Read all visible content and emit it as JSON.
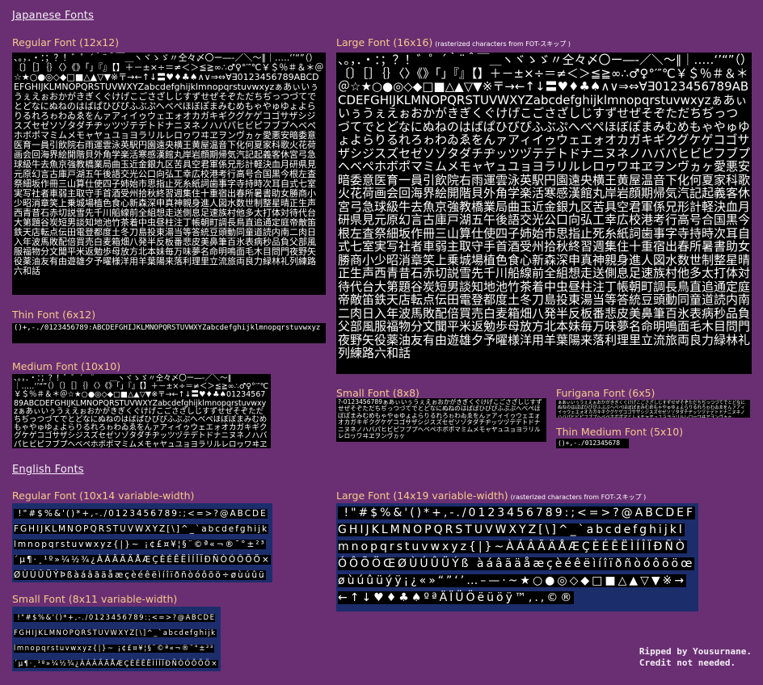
{
  "colors": {
    "background": "#6a2f72",
    "section_title": "#f4f0f6",
    "font_label": "#f6c98a",
    "sheet_bg": "#000000",
    "glyph": "#ffffff",
    "variable_width_band": "#1c2d6c"
  },
  "sections": {
    "japanese": "Japanese Fonts",
    "english": "English Fonts"
  },
  "japanese": {
    "regular": {
      "label": "Regular Font (12x12)",
      "glyphs": "、。，．・：；？！゛゜´｀¨＾￣＿ヽヾゝゞ〃仝々〆〇ー―‐／＼～∥｜…‥‘’“”（）〔〕［］｛｝〈〉《》「」『』【】＋－±×÷＝≠＜＞≦≧∞∴♂♀°′″℃￥＄％＃＆＊＠☆★○●◎◇◆□■△▲▽▼※〒→←↑↓〓♥♦♣♠∧∨⇒⇔∀∃0123456789ABCDEFGHIJKLMNOPQRSTUVWXYZabcdefghijklmnopqrstuvwxyzぁあぃいぅうぇえぉおかがきぎくぐけげこごさざしじすずせぜそぞただちぢっつづてでとどなにぬねのはばぱひびぴふぶぷへべぺほぼぽまみむめもゃやゅゆょよらりるれろゎわゐゑをんァアィイゥウェエォオカガキギクグケゲコゴサザシジスズセゼソゾタダチヂッツヅテデトドナニヌネノハバパヒビピフブプヘベペホボポマミムメモャヤュユョヨラリルレロヮワヰヱヲンヴヵヶ愛悪安暗委意医育一員引飲院右雨運雲泳英駅円園遠央横王黄屋温音下化何夏家科歌火花荷画会回海界絵開階貝外角学楽活寒感漢館丸岸岩顔期帰気汽記起義客休宮弓急球級牛去魚京強教橋業局曲玉近金銀九区苦具空君軍係兄形計軽決血月研県見元原幻言古庫戸湖五午後語交光公口向弘工幸広校港考行高号合国黒今根左査祭細坂作冊三山算仕使四子姉始市思指止死糸紙詞歯事字寺持時次耳自式七室実写社者車弱主取守手首酒受州拾秋終習週集住十重宿出春所暑書助女勝商小少昭消章笑上乗城場植色食心新森深申真神親身進人図水数世制整星晴正生声西青昔石赤切説雪先千川船線前全組想走送側息足速族村他多太打体対待代台大第題谷炭短男談知地池竹茶着中虫昼柱注丁帳朝町調長鳥直追通定庭帝敵笛鉄天店転点伝田電登都度土冬刀島投東湯当等答統豆頭動同童道読内南二肉日入年波馬敗配倍買売白麦箱畑八発半反板番悲皮美鼻筆百氷表病秒品負父部風服福物分文聞平米返勉歩母放方北本妹毎万味夢名命明鳴面毛木目問門夜野矢役薬油友有由遊雄夕予曜様洋用羊葉陽来落利理里立流旅両良力緑林礼列練路六和話"
    },
    "large": {
      "label": "Large Font (16x16)",
      "note": "(rasterized characters from FOT-スキップ )",
      "glyphs": "、。，．・：；？！゛゜´｀¨＾￣＿ヽヾゝゞ〃仝々〆〇ー―‐／＼～∥｜…‥‘’“”（）〔〕［］｛｝〈〉《》「」『』【】＋－±×÷＝≠＜＞≦≧∞∴♂♀°′″℃￥＄％＃＆＊＠☆★○●◎◇◆□■△▲▽▼※〒→←↑↓〓♥♦♣♠∧∨⇒⇔∀∃0123456789ABCDEFGHIJKLMNOPQRSTUVWXYZabcdefghijklmnopqrstuvwxyzぁあぃいぅうぇえぉおかがきぎくぐけげこごさざしじすずせぜそぞただちぢっつづてでとどなにぬねのはばぱひびぴふぶぷへべぺほぼぽまみむめもゃやゅゆょよらりるれろゎわゐゑをんァアィイゥウェエォオカガキギクグケゲコゴサザシジスズセゼソゾタダチヂッツヅテデトドナニヌネノハバパヒビピフブプヘベペホボポマミムメモャヤュユョヨラリルレロヮワヰヱヲンヴヵヶ愛悪安暗委意医育一員引飲院右雨運雲泳英駅円園遠央横王黄屋温音下化何夏家科歌火花荷画会回海界絵開階貝外角学楽活寒感漢館丸岸岩顔期帰気汽記起義客休宮弓急球級牛去魚京強教橋業局曲玉近金銀九区苦具空君軍係兄形計軽決血月研県見元原幻言古庫戸湖五午後語交光公口向弘工幸広校港考行高号合国黒今根左査祭細坂作冊三山算仕使四子姉始市思指止死糸紙詞歯事字寺持時次耳自式七室実写社者車弱主取守手首酒受州拾秋終習週集住十重宿出春所暑書助女勝商小少昭消章笑上乗城場植色食心新森深申真神親身進人図水数世制整星晴正生声西青昔石赤切説雪先千川船線前全組想走送側息足速族村他多太打体対待代台大第題谷炭短男談知地池竹茶着中虫昼柱注丁帳朝町調長鳥直追通定庭帝敵笛鉄天店転点伝田電登都度土冬刀島投東湯当等答統豆頭動同童道読内南二肉日入年波馬敗配倍買売白麦箱畑八発半反板番悲皮美鼻筆百氷表病秒品負父部風服福物分文聞平米返勉歩母放方北本妹毎万味夢名命明鳴面毛木目問門夜野矢役薬油友有由遊雄夕予曜様洋用羊葉陽来落利理里立流旅両良力緑林礼列練路六和話"
    },
    "thin": {
      "label": "Thin Font (6x12)",
      "glyphs": "()+,-./0123456789:ABCDEFGHIJKLMNOPQRSTUVWXYZabcdefghijklmnopqrstuvwxyz"
    },
    "medium": {
      "label": "Medium Font (10x10)",
      "glyphs": "、。，．・：；？！゛゜´｀¨＾￣＿ヽヾゝゞ〃仝々〆〇ー―‐／＼～∥｜…‥‘’“”（）〔〕［］｛｝〈〉《》「」『』【】＋－±×÷＝≠＜＞≦≧∞∴♂♀°′″℃￥＄％＃＆＊＠☆★○●◎◇◆□■△▲▽▼※〒→←↑↓〓♥♦♣♠0123456789ABCDEFGHIJKLMNOPQRSTUVWXYZabcdefghijklmnopqrstuvwxyzぁあぃいぅうぇえぉおかがきぎくぐけげこごさざしじすずせぜそぞただちぢっつづてでとどなにぬねのはばぱひびぴふぶぷへべぺほぼぽまみむめもゃやゅゆょよらりるれろゎわゐゑをんァアィイゥウェエォオカガキギクグケゲコゴサザシジスズセゼソゾタダチヂッツヅテデトドナニヌネノハバパヒビピフブプヘベペホボポマミムメモャヤュユョヨラリルレロヮワヰヱヲンヴヵヶ"
    },
    "small": {
      "label": "Small Font (8x8)",
      "glyphs": "?-0123456789ぁあぃいぅうぇえぉおかがきぎくぐけげこごさざしじすずせぜそぞただちぢっつづてでとどなにぬねのはばぱひびぴふぶぷへべぺほぼぽまみむめもゃやゅゆょよらりるれろゎわゐゑをんァアィイゥウェエォオカガキギクグケゲコゴサザシジスズセゼソゾタダチヂッツヅテデトドナニヌネノハバパヒビピフブプヘベペホボポマミムメモャヤュユョヨラリルレロヮワヰヱヲンヴヵヶ"
    },
    "furigana": {
      "label": "Furigana Font (6x5)",
      "glyphs": "ぁあぃいぅうぇえぉおかがきぎくぐけげこごさざしじすずせぜそぞただちぢっつづてでとどなにぬねのはばぱひびぴふぶぷへべぺほぼぽまみむめもゃやゅゆょよらりるれろゎわゐゑをんァアィイゥウェエォオカガキギクグケゲコゴサザシジスズセゼソゾタダチヂッツヅテデトドナニヌネノハバパヒビピフブプヘベペホボポマミムメモャヤュユョヨラリルレロヮワヰヱヲンヴヵヶ"
    },
    "thin_medium": {
      "label": "Thin Medium Font (5x10)",
      "glyphs": "()+,-./0123456789:"
    }
  },
  "english": {
    "regular": {
      "label": "Regular Font (10x14 variable-width)",
      "glyphs": " !\"#$%&'()*+,-./0123456789:;<=>?@ABCDEFGHIJKLMNOPQRSTUVWXYZ[\\]^_`abcdefghijklmnopqrstuvwxyz{|}~ ¡¢£¤¥¦§¨©ª«¬­®¯°±²³´µ¶·¸¹º»¼½¾¿ÀÁÂÃÄÅÆÇÈÉÊËÌÍÎÏÐÑÒÓÔÕÖ×ØÙÚÛÜÝÞßàáâãäåæçèéêëìíîïðñòóôõö÷øùúûüýþÿŒœ‘’“”…†‡•™©®♥♦♣♠○●◎◇◆□■△▲▽▼※→←↑↓"
    },
    "large": {
      "label": "Large Font (14x19 variable-width)",
      "note": "(rasterized characters from FOT-スキップ )",
      "glyphs": " !\"#$%&'()*+,-./0123456789:;<=>?@ABCDEFGHIJKLMNOPQRSTUVWXYZ[\\]^_`abcdefghijklmnopqrstuvwxyz{|}~ÀÁÂÃÄÅÆÇÈÉÊËÌÍÎÏÐÑÒÓÔÕÖŒØÙÚÛÜÝß àáâãäåæçèéêëìíîïðñòóôõöœøùúûüýÿ¡¿«»“”‘’…–—·~★○●◎◇◆□■△▲▽▼※→←↑↓♥♦♣♠ºªÄÏÜÖëüöÿ™,.,©®"
    },
    "small": {
      "label": "Small Font (8x11 variable-width)",
      "glyphs": " !\"#$%&'()*+,-./0123456789:;<=>?@ABCDEFGHIJKLMNOPQRSTUVWXYZ[\\]^_`abcdefghijklmnopqrstuvwxyz{|}~ ¡¢£¤¥¦§¨©ª«¬­®¯°±²³´µ¶·¸¹º»¼½¾¿ÀÁÂÃÄÅÆÇÈÉÊËÌÍÎÏÐÑÒÓÔÕÖ×ØÙÚÛÜÝÞßàáâãäåæçèéêëìíîïðñòóôõö÷øùúûüýþÿŒœ‘’“”…†‡•™©®"
    }
  },
  "credit": {
    "line1": "Ripped by Yousurnane.",
    "line2": "Credit not needed."
  }
}
